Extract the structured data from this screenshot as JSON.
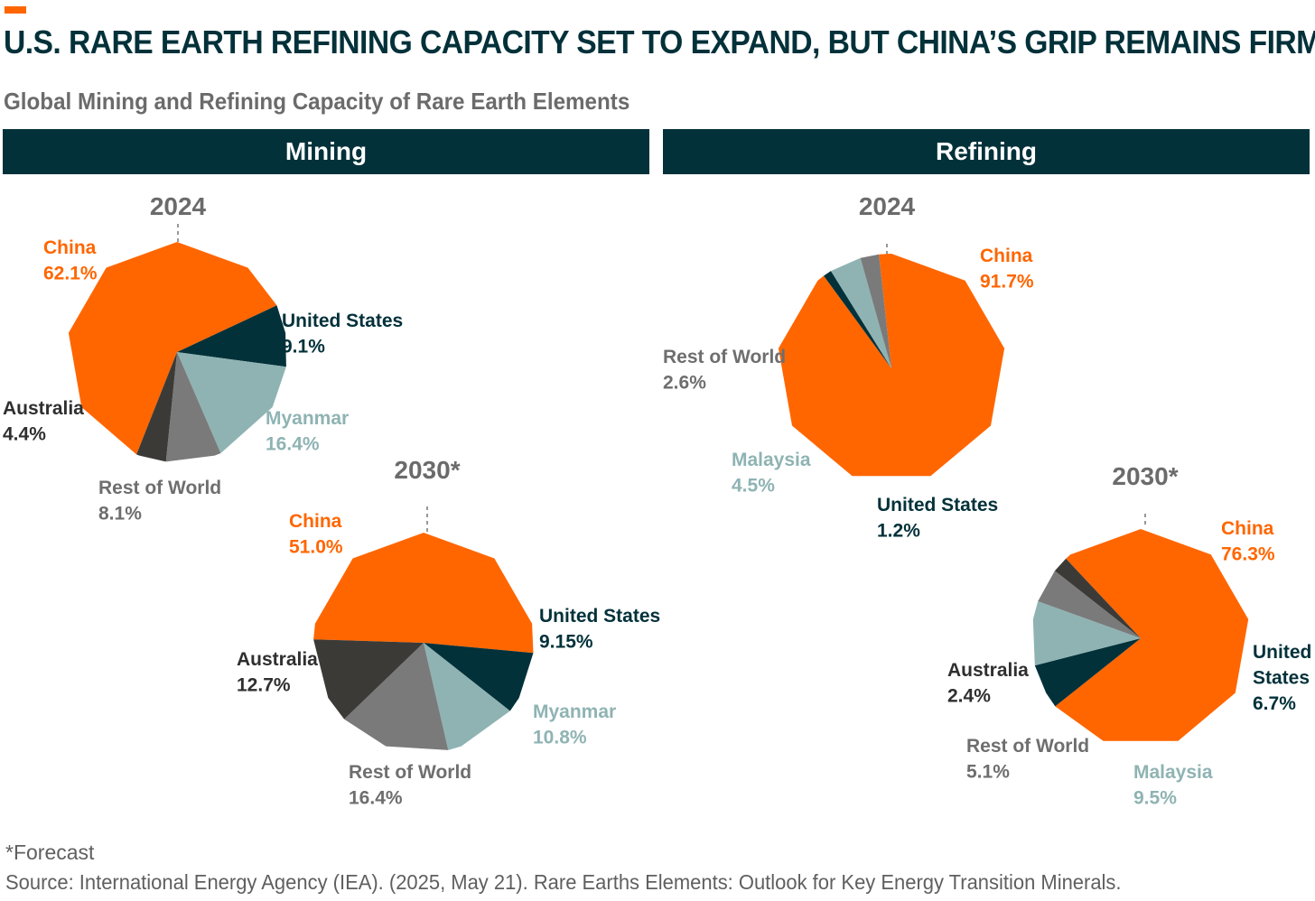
{
  "header": {
    "title": "U.S. RARE EARTH REFINING CAPACITY SET TO EXPAND, BUT CHINA’S GRIP REMAINS FIRM",
    "subtitle": "Global Mining and Refining Capacity of Rare Earth Elements"
  },
  "panels": {
    "mining_label": "Mining",
    "refining_label": "Refining"
  },
  "colors": {
    "accent": "#ff6600",
    "China": "#ff6600",
    "United States": "#03313a",
    "Myanmar": "#8fb3b3",
    "Malaysia": "#8fb3b3",
    "Australia": "#3b3a37",
    "Rest of World": "#7a7a7a"
  },
  "chart_data": [
    {
      "type": "pie",
      "panel": "Mining",
      "title": "2024",
      "slices": [
        {
          "label": "China",
          "value": 62.1,
          "display": "62.1%"
        },
        {
          "label": "United States",
          "value": 9.1,
          "display": "9.1%"
        },
        {
          "label": "Myanmar",
          "value": 16.4,
          "display": "16.4%"
        },
        {
          "label": "Rest of World",
          "value": 8.1,
          "display": "8.1%"
        },
        {
          "label": "Australia",
          "value": 4.4,
          "display": "4.4%"
        }
      ]
    },
    {
      "type": "pie",
      "panel": "Mining",
      "title": "2030*",
      "slices": [
        {
          "label": "China",
          "value": 51.0,
          "display": "51.0%"
        },
        {
          "label": "United States",
          "value": 9.15,
          "display": "9.15%"
        },
        {
          "label": "Myanmar",
          "value": 10.8,
          "display": "10.8%"
        },
        {
          "label": "Rest of World",
          "value": 16.4,
          "display": "16.4%"
        },
        {
          "label": "Australia",
          "value": 12.7,
          "display": "12.7%"
        }
      ]
    },
    {
      "type": "pie",
      "panel": "Refining",
      "title": "2024",
      "slices": [
        {
          "label": "China",
          "value": 91.7,
          "display": "91.7%"
        },
        {
          "label": "United States",
          "value": 1.2,
          "display": "1.2%"
        },
        {
          "label": "Malaysia",
          "value": 4.5,
          "display": "4.5%"
        },
        {
          "label": "Rest of World",
          "value": 2.6,
          "display": "2.6%"
        }
      ]
    },
    {
      "type": "pie",
      "panel": "Refining",
      "title": "2030*",
      "slices": [
        {
          "label": "China",
          "value": 76.3,
          "display": "76.3%"
        },
        {
          "label": "United States",
          "value": 6.7,
          "display": "6.7%"
        },
        {
          "label": "Malaysia",
          "value": 9.5,
          "display": "9.5%"
        },
        {
          "label": "Rest of World",
          "value": 5.1,
          "display": "5.1%"
        },
        {
          "label": "Australia",
          "value": 2.4,
          "display": "2.4%"
        }
      ]
    }
  ],
  "footnotes": {
    "note": "*Forecast",
    "source": "Source: International Energy Agency (IEA). (2025, May 21). Rare Earths Elements: Outlook for Key Energy Transition Minerals."
  }
}
